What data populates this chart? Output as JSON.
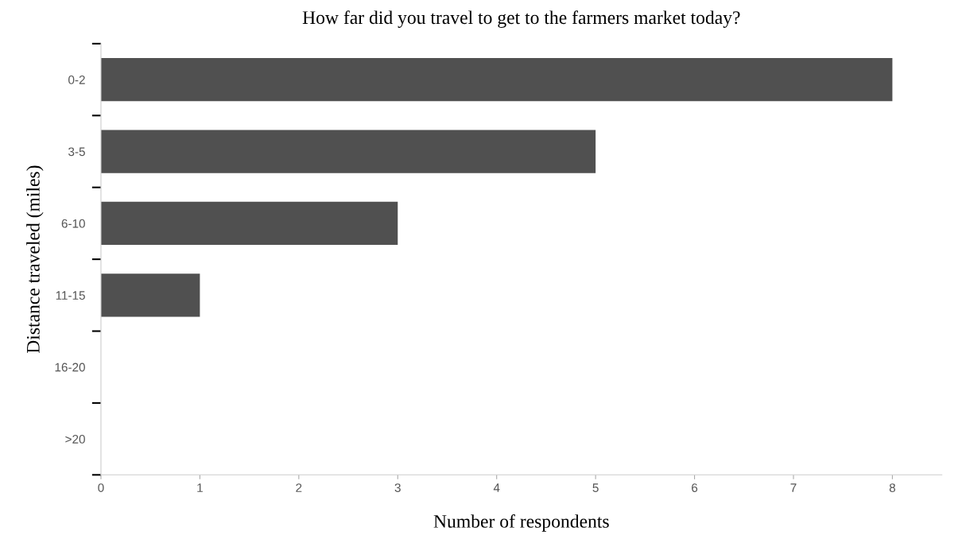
{
  "chart_data": {
    "type": "bar",
    "orientation": "horizontal",
    "title": "How far did you travel to get to the farmers market today?",
    "xlabel": "Number of respondents",
    "ylabel": "Distance traveled (miles)",
    "categories": [
      "0-2",
      "3-5",
      "6-10",
      "11-15",
      "16-20",
      ">20"
    ],
    "values": [
      8,
      5,
      3,
      1,
      0,
      0
    ],
    "color": "#505050",
    "xlim": [
      0,
      8.5
    ],
    "xticks": [
      0,
      1,
      2,
      3,
      4,
      5,
      6,
      7,
      8
    ],
    "grid": false,
    "legend": false
  }
}
